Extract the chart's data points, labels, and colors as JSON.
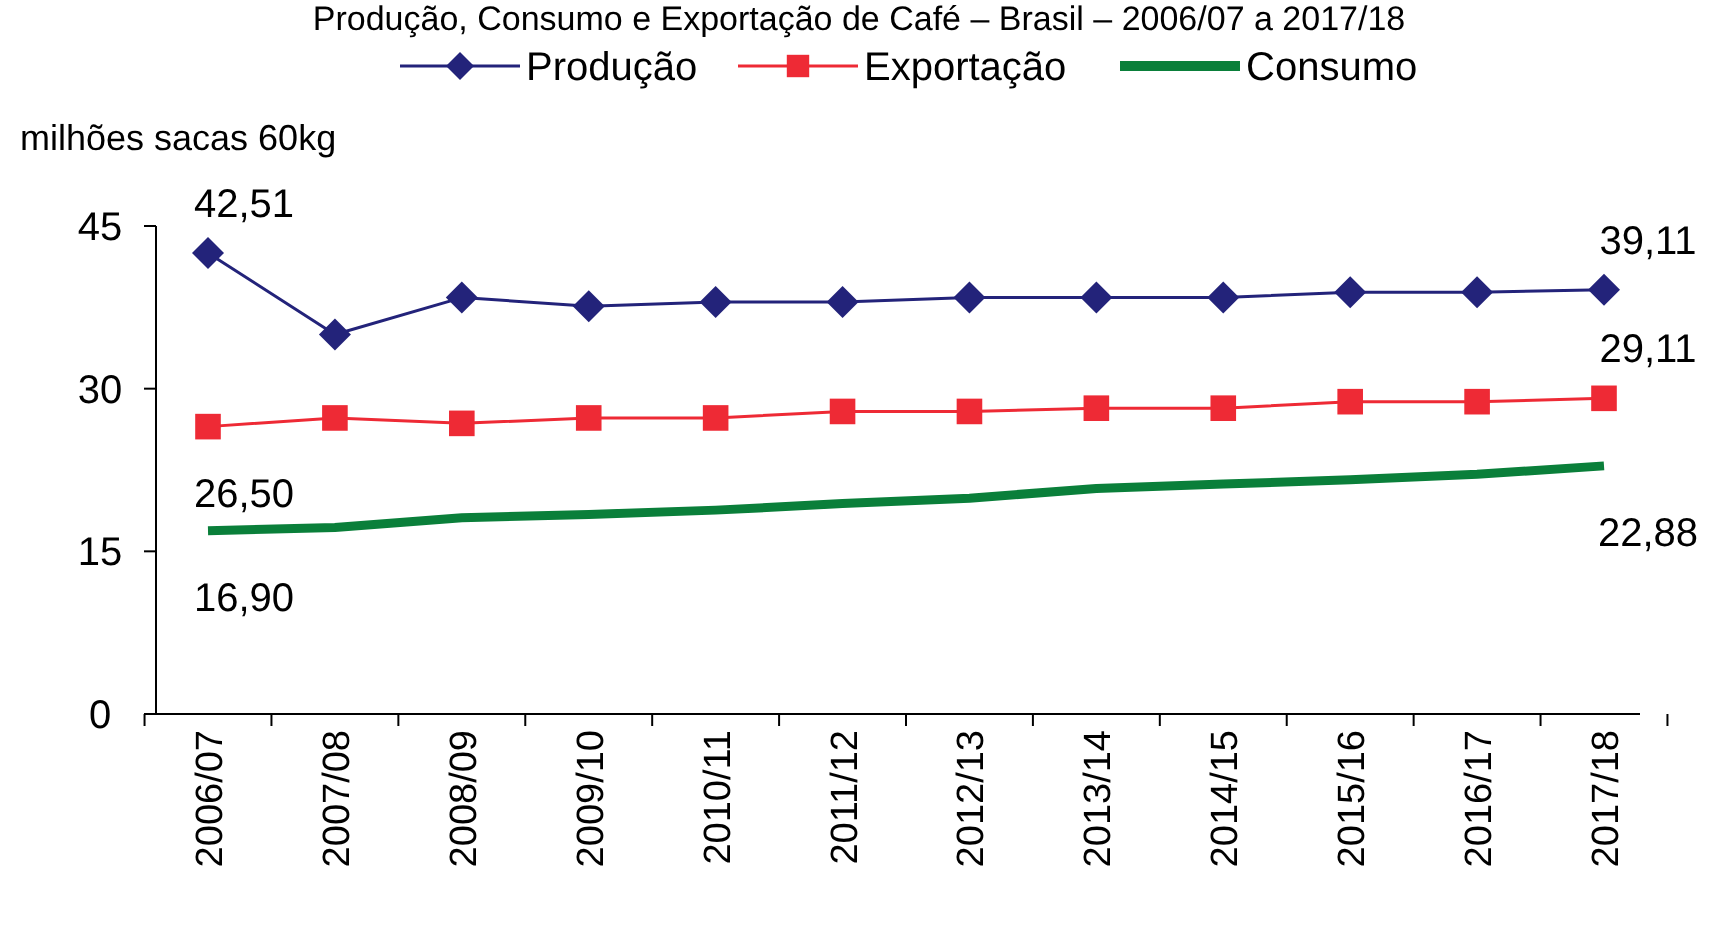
{
  "chart_data": {
    "type": "line",
    "title": "Produção, Consumo e Exportação de Café – Brasil – 2006/07 a 2017/18",
    "ylabel": "milhões sacas 60kg",
    "categories": [
      "2006/07",
      "2007/08",
      "2008/09",
      "2009/10",
      "2010/11",
      "2011/12",
      "2012/13",
      "2013/14",
      "2014/15",
      "2015/16",
      "2016/17",
      "2017/18"
    ],
    "ylim": [
      0,
      45
    ],
    "yticks": [
      0,
      15,
      30,
      45
    ],
    "grid": false,
    "legend": "top right",
    "series": [
      {
        "name": "Produção",
        "color": "#23237a",
        "marker": "diamond",
        "values": [
          42.51,
          35.0,
          38.4,
          37.6,
          38.0,
          38.0,
          38.4,
          38.4,
          38.4,
          38.9,
          38.9,
          39.11
        ],
        "value_labels": [
          "42,51",
          null,
          null,
          null,
          null,
          null,
          null,
          null,
          null,
          null,
          null,
          "39,11"
        ]
      },
      {
        "name": "Exportação",
        "color": "#ee2a35",
        "marker": "square",
        "values": [
          26.5,
          27.3,
          26.8,
          27.3,
          27.3,
          27.9,
          27.9,
          28.2,
          28.2,
          28.8,
          28.8,
          29.11
        ],
        "value_labels": [
          "26,50",
          null,
          null,
          null,
          null,
          null,
          null,
          null,
          null,
          null,
          null,
          "29,11"
        ]
      },
      {
        "name": "Consumo",
        "color": "#0a7f3a",
        "marker": "none",
        "values": [
          16.9,
          17.2,
          18.1,
          18.4,
          18.8,
          19.4,
          19.9,
          20.8,
          21.2,
          21.6,
          22.1,
          22.88
        ],
        "value_labels": [
          "16,90",
          null,
          null,
          null,
          null,
          null,
          null,
          null,
          null,
          null,
          null,
          "22,88"
        ]
      }
    ]
  }
}
